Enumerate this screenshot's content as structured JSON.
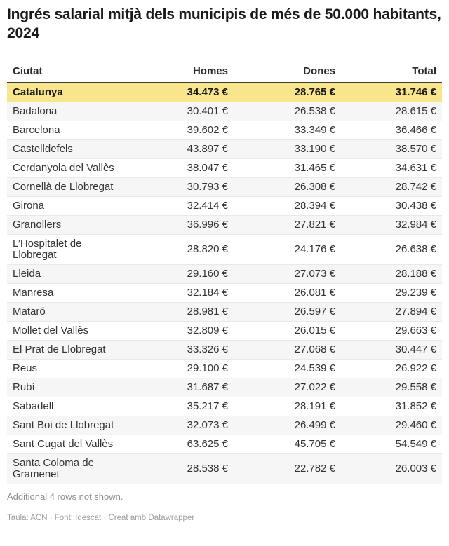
{
  "title": "Ingrés salarial mitjà dels municipis de més de 50.000 habitants, 2024",
  "table": {
    "columns": [
      "Ciutat",
      "Homes",
      "Dones",
      "Total"
    ],
    "rows": [
      {
        "city": "Catalunya",
        "homes": "34.473 €",
        "dones": "28.765 €",
        "total": "31.746 €",
        "highlight": true
      },
      {
        "city": "Badalona",
        "homes": "30.401 €",
        "dones": "26.538 €",
        "total": "28.615 €"
      },
      {
        "city": "Barcelona",
        "homes": "39.602 €",
        "dones": "33.349 €",
        "total": "36.466 €"
      },
      {
        "city": "Castelldefels",
        "homes": "43.897 €",
        "dones": "33.190 €",
        "total": "38.570 €"
      },
      {
        "city": "Cerdanyola del Vallès",
        "homes": "38.047 €",
        "dones": "31.465 €",
        "total": "34.631 €"
      },
      {
        "city": "Cornellà de Llobregat",
        "homes": "30.793 €",
        "dones": "26.308 €",
        "total": "28.742 €"
      },
      {
        "city": "Girona",
        "homes": "32.414 €",
        "dones": "28.394 €",
        "total": "30.438 €"
      },
      {
        "city": "Granollers",
        "homes": "36.996 €",
        "dones": "27.821 €",
        "total": "32.984 €"
      },
      {
        "city": "L’Hospitalet de Llobregat",
        "homes": "28.820 €",
        "dones": "24.176 €",
        "total": "26.638 €"
      },
      {
        "city": "Lleida",
        "homes": "29.160 €",
        "dones": "27.073 €",
        "total": "28.188 €"
      },
      {
        "city": "Manresa",
        "homes": "32.184 €",
        "dones": "26.081 €",
        "total": "29.239 €"
      },
      {
        "city": "Mataró",
        "homes": "28.981 €",
        "dones": "26.597 €",
        "total": "27.894 €"
      },
      {
        "city": "Mollet del Vallès",
        "homes": "32.809 €",
        "dones": "26.015 €",
        "total": "29.663 €"
      },
      {
        "city": "El Prat de Llobregat",
        "homes": "33.326 €",
        "dones": "27.068 €",
        "total": "30.447 €"
      },
      {
        "city": "Reus",
        "homes": "29.100 €",
        "dones": "24.539 €",
        "total": "26.922 €"
      },
      {
        "city": "Rubí",
        "homes": "31.687 €",
        "dones": "27.022 €",
        "total": "29.558 €"
      },
      {
        "city": "Sabadell",
        "homes": "35.217 €",
        "dones": "28.191 €",
        "total": "31.852 €"
      },
      {
        "city": "Sant Boi de Llobregat",
        "homes": "32.073 €",
        "dones": "26.499 €",
        "total": "29.460 €"
      },
      {
        "city": "Sant Cugat del Vallès",
        "homes": "63.625 €",
        "dones": "45.705 €",
        "total": "54.549 €"
      },
      {
        "city": "Santa Coloma de Gramenet",
        "homes": "28.538 €",
        "dones": "22.782 €",
        "total": "26.003 €"
      }
    ]
  },
  "footer": {
    "more_rows_note": "Additional 4 rows not shown.",
    "attribution": "Taula: ACN · Font: Idescat · Creat amb Datawrapper"
  },
  "colors": {
    "highlight_row": "#f8e58c",
    "stripe_row": "#f6f6f6",
    "row_border": "#e9e9e9",
    "header_border": "#393939",
    "body_text": "#333333",
    "muted_text": "#8d8d8d"
  },
  "chart_data": {
    "type": "table",
    "title": "Ingrés salarial mitjà dels municipis de més de 50.000 habitants, 2024",
    "columns": [
      "Ciutat",
      "Homes",
      "Dones",
      "Total"
    ],
    "unit": "€",
    "highlighted_row": "Catalunya",
    "rows": [
      [
        "Catalunya",
        34473,
        28765,
        31746
      ],
      [
        "Badalona",
        30401,
        26538,
        28615
      ],
      [
        "Barcelona",
        39602,
        33349,
        36466
      ],
      [
        "Castelldefels",
        43897,
        33190,
        38570
      ],
      [
        "Cerdanyola del Vallès",
        38047,
        31465,
        34631
      ],
      [
        "Cornellà de Llobregat",
        30793,
        26308,
        28742
      ],
      [
        "Girona",
        32414,
        28394,
        30438
      ],
      [
        "Granollers",
        36996,
        27821,
        32984
      ],
      [
        "L’Hospitalet de Llobregat",
        28820,
        24176,
        26638
      ],
      [
        "Lleida",
        29160,
        27073,
        28188
      ],
      [
        "Manresa",
        32184,
        26081,
        29239
      ],
      [
        "Mataró",
        28981,
        26597,
        27894
      ],
      [
        "Mollet del Vallès",
        32809,
        26015,
        29663
      ],
      [
        "El Prat de Llobregat",
        33326,
        27068,
        30447
      ],
      [
        "Reus",
        29100,
        24539,
        26922
      ],
      [
        "Rubí",
        31687,
        27022,
        29558
      ],
      [
        "Sabadell",
        35217,
        28191,
        31852
      ],
      [
        "Sant Boi de Llobregat",
        32073,
        26499,
        29460
      ],
      [
        "Sant Cugat del Vallès",
        63625,
        45705,
        54549
      ],
      [
        "Santa Coloma de Gramenet",
        28538,
        22782,
        26003
      ]
    ]
  }
}
